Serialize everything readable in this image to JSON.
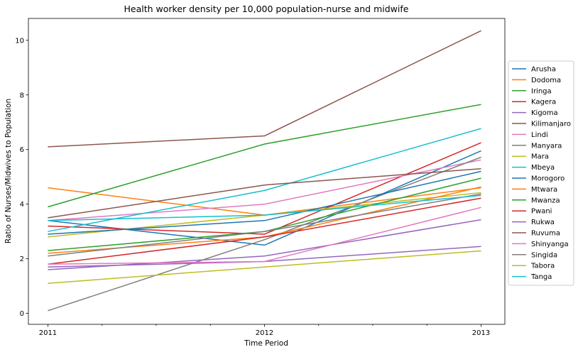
{
  "chart_data": {
    "type": "line",
    "title": "Health worker density per 10,000 population-nurse and midwife",
    "xlabel": "Time Period",
    "ylabel": "Ratio of Nurses/Midwives to Population",
    "x": [
      2011,
      2012,
      2013
    ],
    "x_tick_labels": [
      "2011",
      "2012",
      "2013"
    ],
    "y_ticks": [
      0,
      2,
      4,
      6,
      8,
      10
    ],
    "xlim": [
      2010.91,
      2013.11
    ],
    "ylim": [
      -0.4,
      10.8
    ],
    "grid": false,
    "legend_position": "right",
    "series": [
      {
        "name": "Arusha",
        "color": "#1f77b4",
        "values": [
          3.4,
          2.5,
          5.95
        ]
      },
      {
        "name": "Dodoma",
        "color": "#ff7f0e",
        "values": [
          4.6,
          3.6,
          4.6
        ]
      },
      {
        "name": "Iringa",
        "color": "#2ca02c",
        "values": [
          3.9,
          6.2,
          7.65
        ]
      },
      {
        "name": "Kagera",
        "color": "#d62728",
        "values": [
          3.2,
          2.9,
          6.25
        ]
      },
      {
        "name": "Kigoma",
        "color": "#9467bd",
        "values": [
          1.6,
          2.1,
          3.43
        ]
      },
      {
        "name": "Kilimanjaro",
        "color": "#8c564b",
        "values": [
          6.1,
          6.5,
          10.35
        ]
      },
      {
        "name": "Lindi",
        "color": "#e377c2",
        "values": [
          3.4,
          4.0,
          5.62
        ]
      },
      {
        "name": "Manyara",
        "color": "#7f7f7f",
        "values": [
          0.1,
          2.7,
          5.72
        ]
      },
      {
        "name": "Mara",
        "color": "#bcbd22",
        "values": [
          2.8,
          3.6,
          4.42
        ]
      },
      {
        "name": "Mbeya",
        "color": "#17becf",
        "values": [
          3.0,
          4.5,
          6.77
        ]
      },
      {
        "name": "Morogoro",
        "color": "#1f77b4",
        "values": [
          2.9,
          3.4,
          5.2
        ]
      },
      {
        "name": "Mtwara",
        "color": "#ff7f0e",
        "values": [
          2.2,
          2.8,
          4.63
        ]
      },
      {
        "name": "Mwanza",
        "color": "#2ca02c",
        "values": [
          2.3,
          3.0,
          4.95
        ]
      },
      {
        "name": "Pwani",
        "color": "#d62728",
        "values": [
          1.8,
          2.8,
          4.22
        ]
      },
      {
        "name": "Rukwa",
        "color": "#9467bd",
        "values": [
          1.7,
          1.9,
          2.45
        ]
      },
      {
        "name": "Ruvuma",
        "color": "#8c564b",
        "values": [
          3.5,
          4.7,
          5.3
        ]
      },
      {
        "name": "Shinyanga",
        "color": "#e377c2",
        "values": [
          1.8,
          1.9,
          3.88
        ]
      },
      {
        "name": "Singida",
        "color": "#7f7f7f",
        "values": [
          2.1,
          3.0,
          4.37
        ]
      },
      {
        "name": "Tabora",
        "color": "#bcbd22",
        "values": [
          1.1,
          1.7,
          2.29
        ]
      },
      {
        "name": "Tanga",
        "color": "#17becf",
        "values": [
          3.4,
          3.6,
          4.32
        ]
      }
    ]
  }
}
